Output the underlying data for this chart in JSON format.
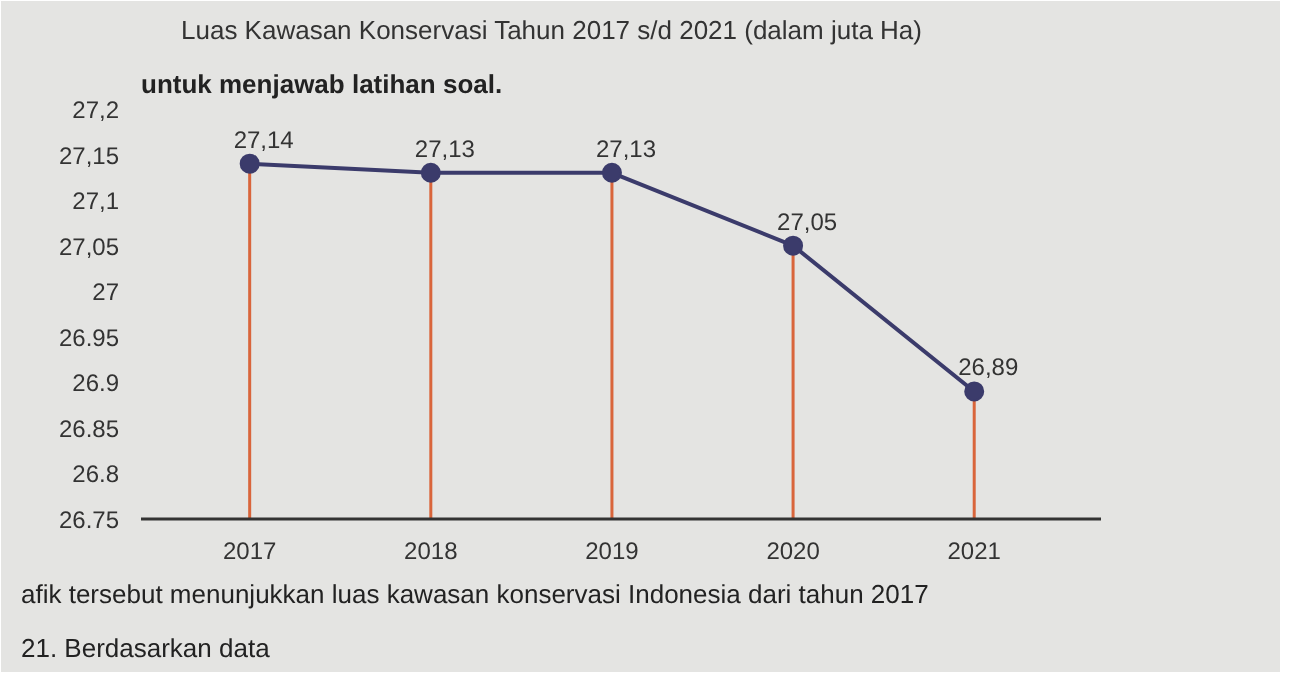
{
  "chart_data": {
    "type": "line",
    "title": "Luas Kawasan Konservasi Tahun 2017 s/d 2021 (dalam juta Ha)",
    "annotations": [
      "untuk menjawab latihan soal.",
      "afik tersebut menunjukkan luas kawasan konservasi Indonesia dari tahun 2017",
      "21. Berdasarkan data"
    ],
    "categories": [
      "2017",
      "2018",
      "2019",
      "2020",
      "2021"
    ],
    "series": [
      {
        "color": "#3b3b6b",
        "values": [
          27.14,
          27.13,
          27.13,
          27.05,
          26.89
        ],
        "value_labels": [
          "27,14",
          "27,13",
          "27,13",
          "27,05",
          "26,89"
        ]
      }
    ],
    "marker": "circle",
    "ylim": [
      26.75,
      27.2
    ],
    "yticks": [
      {
        "value": 26.75,
        "label": "26.75"
      },
      {
        "value": 26.8,
        "label": "26.8"
      },
      {
        "value": 26.85,
        "label": "26.85"
      },
      {
        "value": 26.9,
        "label": "26.9"
      },
      {
        "value": 26.95,
        "label": "26.95"
      },
      {
        "value": 27,
        "label": "27"
      },
      {
        "value": 27.05,
        "label": "27,05"
      },
      {
        "value": 27.1,
        "label": "27,1"
      },
      {
        "value": 27.15,
        "label": "27,15"
      },
      {
        "value": 27.2,
        "label": "27,2"
      }
    ],
    "grid": "x"
  }
}
